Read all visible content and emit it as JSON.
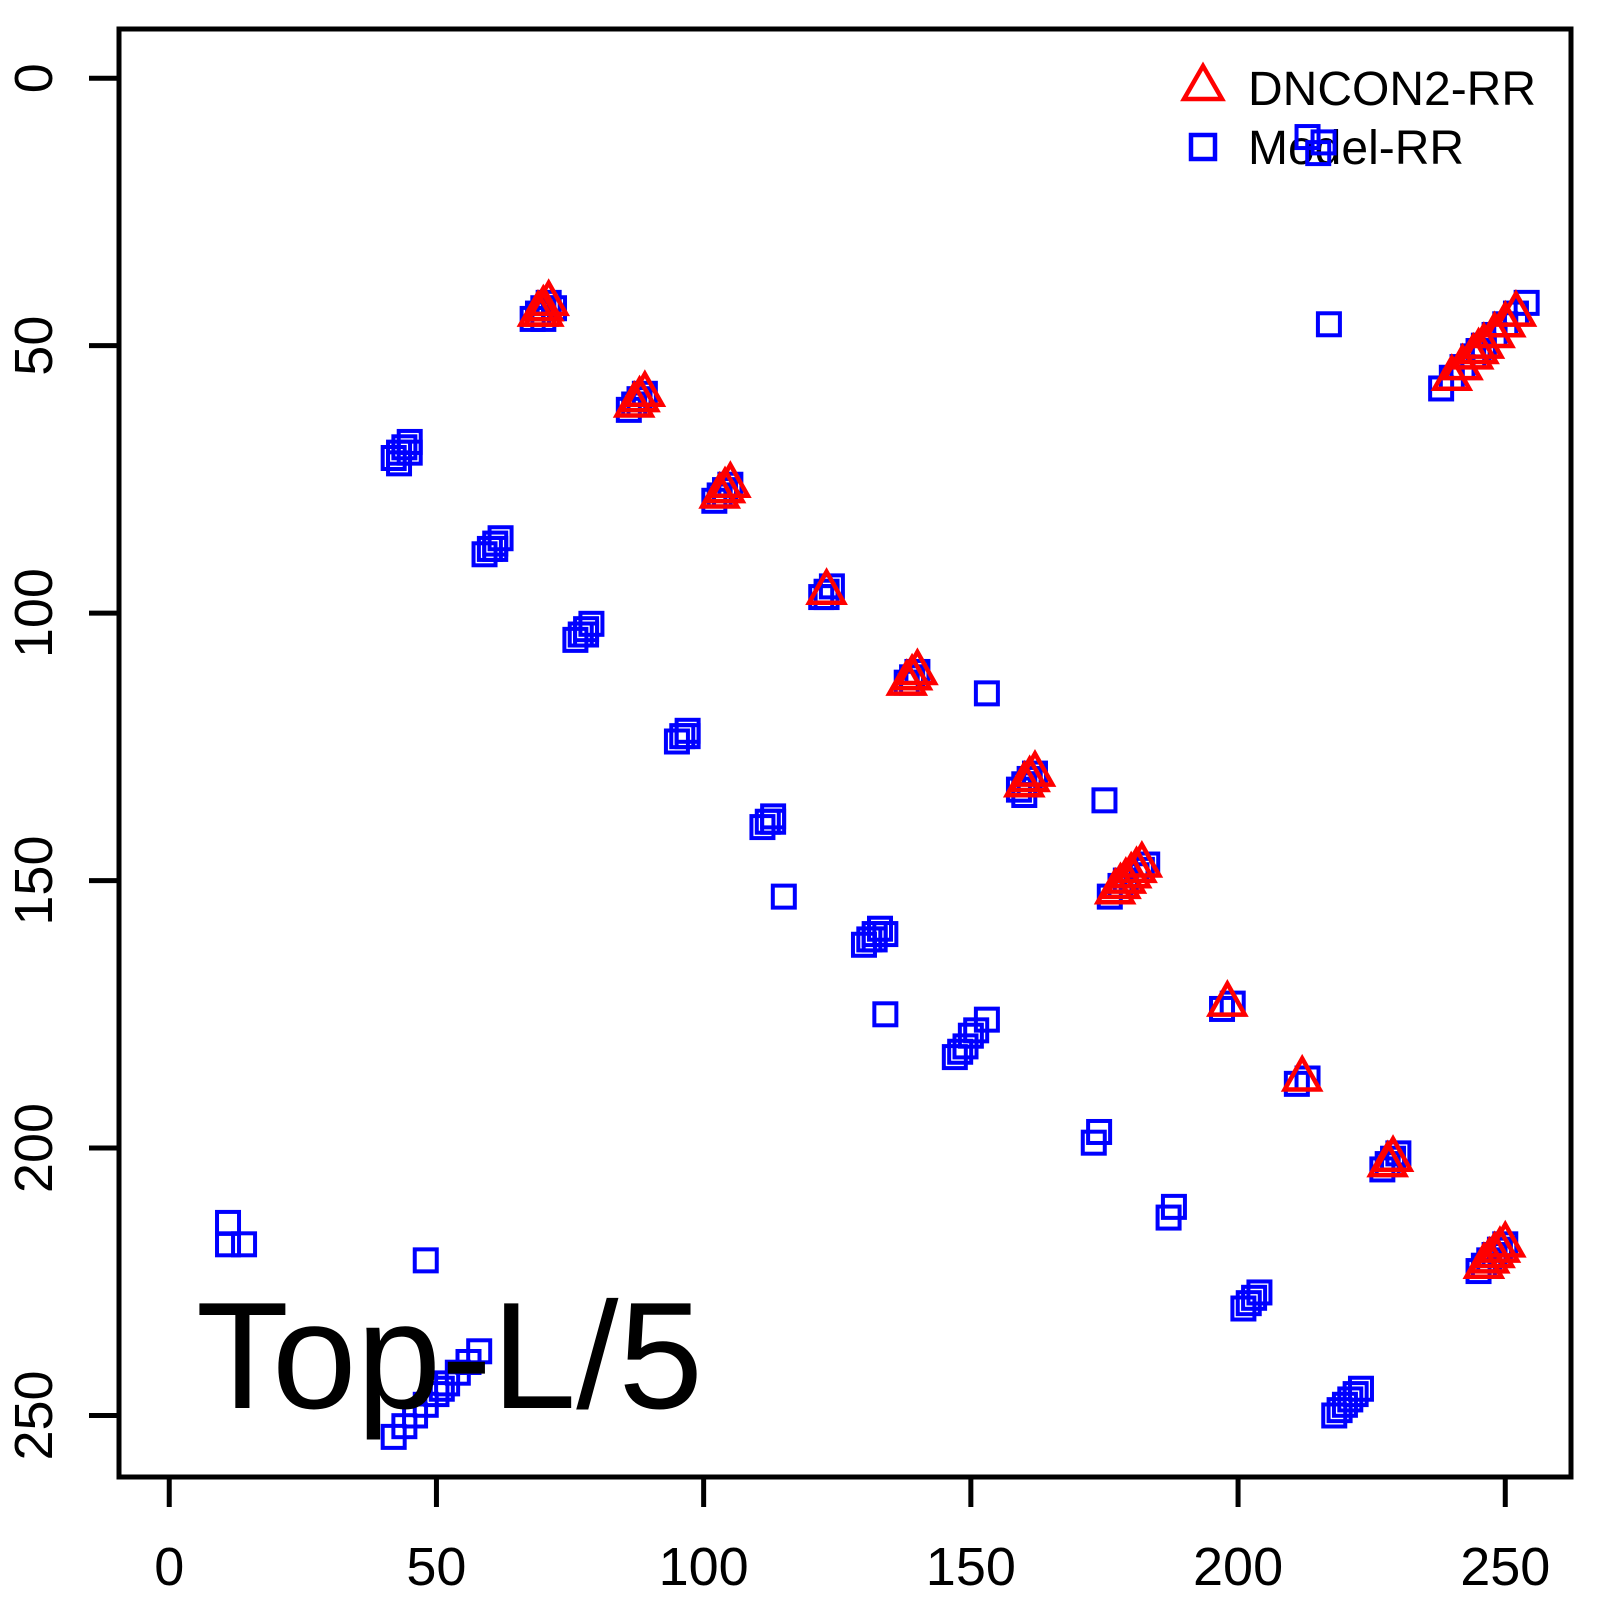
{
  "figure": {
    "annotation": "Top-L/5"
  },
  "legend": {
    "position": "top-right",
    "items": [
      {
        "label": "DNCON2-RR",
        "marker": "open-triangle",
        "color": "#FF0000"
      },
      {
        "label": "Model-RR",
        "marker": "open-square",
        "color": "#0000FF"
      }
    ]
  },
  "chart_data": {
    "type": "scatter",
    "title": "",
    "xlabel": "",
    "ylabel": "",
    "xlim": [
      -9.4,
      262.3
    ],
    "ylim": [
      -9.2,
      261.5
    ],
    "y_axis_reversed": true,
    "grid": false,
    "legend_position": "top-right",
    "x_ticks": [
      0,
      50,
      100,
      150,
      200,
      250
    ],
    "y_ticks": [
      0,
      50,
      100,
      150,
      200,
      250
    ],
    "annotation": {
      "text": "Top-L/5",
      "x": 5,
      "y": 249
    },
    "series": [
      {
        "name": "Model-RR",
        "marker": "open-square",
        "color": "#0000FF",
        "points": [
          [
            68,
            45
          ],
          [
            69,
            44
          ],
          [
            70,
            43
          ],
          [
            71,
            42
          ],
          [
            70,
            45
          ],
          [
            72,
            43
          ],
          [
            86,
            62
          ],
          [
            87,
            61
          ],
          [
            88,
            60
          ],
          [
            89,
            59
          ],
          [
            88,
            61
          ],
          [
            102,
            79
          ],
          [
            103,
            78
          ],
          [
            104,
            77
          ],
          [
            105,
            76
          ],
          [
            104,
            78
          ],
          [
            122,
            97
          ],
          [
            123,
            96
          ],
          [
            124,
            95
          ],
          [
            123,
            97
          ],
          [
            138,
            113
          ],
          [
            139,
            112
          ],
          [
            140,
            111
          ],
          [
            139,
            113
          ],
          [
            159,
            133
          ],
          [
            160,
            132
          ],
          [
            161,
            131
          ],
          [
            162,
            130
          ],
          [
            161,
            132
          ],
          [
            160,
            134
          ],
          [
            176,
            153
          ],
          [
            178,
            151
          ],
          [
            179,
            150
          ],
          [
            181,
            149
          ],
          [
            182,
            148
          ],
          [
            183,
            147
          ],
          [
            197,
            174
          ],
          [
            199,
            173
          ],
          [
            211,
            188
          ],
          [
            213,
            187
          ],
          [
            227,
            204
          ],
          [
            228,
            203
          ],
          [
            229,
            202
          ],
          [
            230,
            201
          ],
          [
            245,
            223
          ],
          [
            246,
            222
          ],
          [
            247,
            221
          ],
          [
            248,
            220
          ],
          [
            249,
            219
          ],
          [
            250,
            218
          ],
          [
            238,
            58
          ],
          [
            240,
            56
          ],
          [
            242,
            54
          ],
          [
            244,
            52
          ],
          [
            245,
            51
          ],
          [
            246,
            50
          ],
          [
            248,
            48
          ],
          [
            250,
            46
          ],
          [
            252,
            44
          ],
          [
            254,
            42
          ],
          [
            213,
            11
          ],
          [
            216,
            12
          ],
          [
            215,
            14
          ],
          [
            217,
            46
          ],
          [
            153,
            115
          ],
          [
            175,
            135
          ],
          [
            45,
            68
          ],
          [
            44,
            69
          ],
          [
            43,
            70
          ],
          [
            42,
            71
          ],
          [
            45,
            70
          ],
          [
            43,
            72
          ],
          [
            62,
            86
          ],
          [
            61,
            87
          ],
          [
            60,
            88
          ],
          [
            59,
            89
          ],
          [
            61,
            88
          ],
          [
            79,
            102
          ],
          [
            78,
            103
          ],
          [
            77,
            104
          ],
          [
            76,
            105
          ],
          [
            78,
            104
          ],
          [
            97,
            122
          ],
          [
            96,
            123
          ],
          [
            95,
            124
          ],
          [
            97,
            123
          ],
          [
            113,
            138
          ],
          [
            112,
            139
          ],
          [
            111,
            140
          ],
          [
            113,
            139
          ],
          [
            133,
            159
          ],
          [
            132,
            160
          ],
          [
            131,
            161
          ],
          [
            130,
            162
          ],
          [
            132,
            161
          ],
          [
            134,
            160
          ],
          [
            153,
            176
          ],
          [
            151,
            178
          ],
          [
            150,
            179
          ],
          [
            149,
            181
          ],
          [
            148,
            182
          ],
          [
            147,
            183
          ],
          [
            174,
            197
          ],
          [
            173,
            199
          ],
          [
            188,
            211
          ],
          [
            187,
            213
          ],
          [
            204,
            227
          ],
          [
            203,
            228
          ],
          [
            202,
            229
          ],
          [
            201,
            230
          ],
          [
            223,
            245
          ],
          [
            222,
            246
          ],
          [
            221,
            247
          ],
          [
            220,
            248
          ],
          [
            219,
            249
          ],
          [
            218,
            250
          ],
          [
            58,
            238
          ],
          [
            56,
            240
          ],
          [
            54,
            242
          ],
          [
            52,
            244
          ],
          [
            51,
            245
          ],
          [
            50,
            246
          ],
          [
            48,
            248
          ],
          [
            46,
            250
          ],
          [
            44,
            252
          ],
          [
            42,
            254
          ],
          [
            11,
            214
          ],
          [
            11,
            218
          ],
          [
            14,
            218
          ],
          [
            48,
            221
          ],
          [
            115,
            153
          ],
          [
            134,
            175
          ]
        ]
      },
      {
        "name": "DNCON2-RR",
        "marker": "open-triangle",
        "color": "#FF0000",
        "points": [
          [
            69,
            44
          ],
          [
            70,
            43
          ],
          [
            71,
            42
          ],
          [
            70,
            44
          ],
          [
            87,
            61
          ],
          [
            88,
            60
          ],
          [
            89,
            59
          ],
          [
            103,
            78
          ],
          [
            104,
            77
          ],
          [
            105,
            76
          ],
          [
            123,
            96
          ],
          [
            138,
            113
          ],
          [
            139,
            112
          ],
          [
            140,
            111
          ],
          [
            160,
            132
          ],
          [
            161,
            131
          ],
          [
            162,
            130
          ],
          [
            177,
            152
          ],
          [
            178,
            151
          ],
          [
            179,
            150
          ],
          [
            180,
            149
          ],
          [
            181,
            148
          ],
          [
            182,
            147
          ],
          [
            198,
            173
          ],
          [
            212,
            187
          ],
          [
            228,
            203
          ],
          [
            229,
            202
          ],
          [
            246,
            222
          ],
          [
            247,
            221
          ],
          [
            248,
            220
          ],
          [
            249,
            219
          ],
          [
            250,
            218
          ],
          [
            240,
            56
          ],
          [
            242,
            54
          ],
          [
            244,
            52
          ],
          [
            245,
            51
          ],
          [
            246,
            50
          ],
          [
            248,
            48
          ],
          [
            250,
            46
          ],
          [
            252,
            44
          ]
        ]
      }
    ]
  }
}
